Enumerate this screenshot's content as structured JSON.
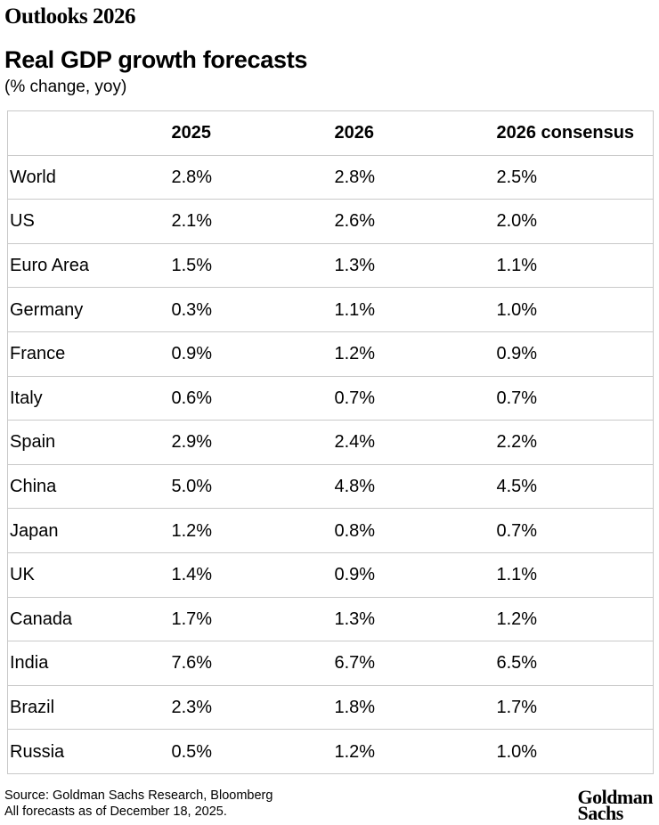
{
  "eyebrow": "Outlooks 2026",
  "title": "Real GDP growth forecasts",
  "subtitle": "(% change, yoy)",
  "table": {
    "columns": [
      "",
      "2025",
      "2026",
      "2026 consensus"
    ],
    "rows": [
      {
        "label": "World",
        "values": [
          "2.8%",
          "2.8%",
          "2.5%"
        ]
      },
      {
        "label": "US",
        "values": [
          "2.1%",
          "2.6%",
          "2.0%"
        ]
      },
      {
        "label": "Euro Area",
        "values": [
          "1.5%",
          "1.3%",
          "1.1%"
        ]
      },
      {
        "label": "Germany",
        "values": [
          "0.3%",
          "1.1%",
          "1.0%"
        ]
      },
      {
        "label": "France",
        "values": [
          "0.9%",
          "1.2%",
          "0.9%"
        ]
      },
      {
        "label": "Italy",
        "values": [
          "0.6%",
          "0.7%",
          "0.7%"
        ]
      },
      {
        "label": "Spain",
        "values": [
          "2.9%",
          "2.4%",
          "2.2%"
        ]
      },
      {
        "label": "China",
        "values": [
          "5.0%",
          "4.8%",
          "4.5%"
        ]
      },
      {
        "label": "Japan",
        "values": [
          "1.2%",
          "0.8%",
          "0.7%"
        ]
      },
      {
        "label": "UK",
        "values": [
          "1.4%",
          "0.9%",
          "1.1%"
        ]
      },
      {
        "label": "Canada",
        "values": [
          "1.7%",
          "1.3%",
          "1.2%"
        ]
      },
      {
        "label": "India",
        "values": [
          "7.6%",
          "6.7%",
          "6.5%"
        ]
      },
      {
        "label": "Brazil",
        "values": [
          "2.3%",
          "1.8%",
          "1.7%"
        ]
      },
      {
        "label": "Russia",
        "values": [
          "0.5%",
          "1.2%",
          "1.0%"
        ]
      }
    ]
  },
  "footer": {
    "source_line1": "Source: Goldman Sachs Research, Bloomberg",
    "source_line2": "All forecasts as of December 18, 2025.",
    "logo_line1": "Goldman",
    "logo_line2": "Sachs"
  },
  "colors": {
    "text": "#000000",
    "table_border": "#c9c9c9",
    "background": "#ffffff"
  },
  "chart_data": {
    "type": "table",
    "title": "Real GDP growth forecasts",
    "subtitle": "(% change, yoy)",
    "categories": [
      "World",
      "US",
      "Euro Area",
      "Germany",
      "France",
      "Italy",
      "Spain",
      "China",
      "Japan",
      "UK",
      "Canada",
      "India",
      "Brazil",
      "Russia"
    ],
    "series": [
      {
        "name": "2025",
        "values": [
          2.8,
          2.1,
          1.5,
          0.3,
          0.9,
          0.6,
          2.9,
          5.0,
          1.2,
          1.4,
          1.7,
          7.6,
          2.3,
          0.5
        ]
      },
      {
        "name": "2026",
        "values": [
          2.8,
          2.6,
          1.3,
          1.1,
          1.2,
          0.7,
          2.4,
          4.8,
          0.8,
          0.9,
          1.3,
          6.7,
          1.8,
          1.2
        ]
      },
      {
        "name": "2026 consensus",
        "values": [
          2.5,
          2.0,
          1.1,
          1.0,
          0.9,
          0.7,
          2.2,
          4.5,
          0.7,
          1.1,
          1.2,
          6.5,
          1.7,
          1.0
        ]
      }
    ],
    "units": "% change, yoy"
  }
}
